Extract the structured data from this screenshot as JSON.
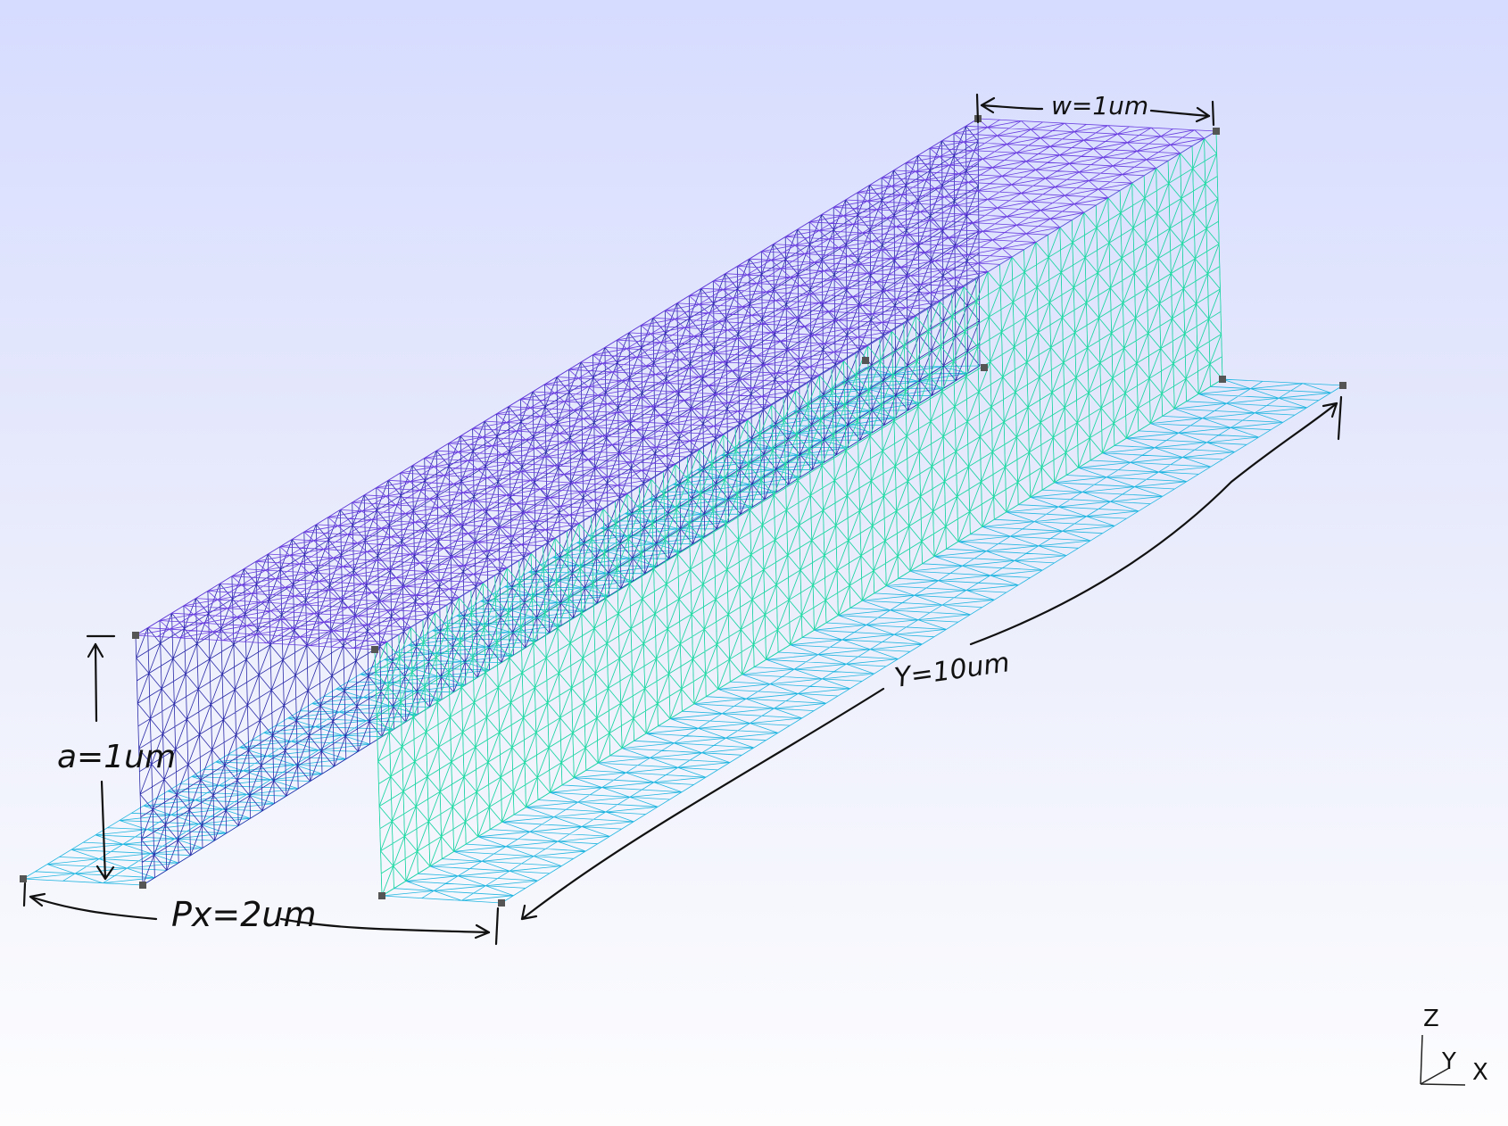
{
  "annotations": {
    "width_label": "w=1um",
    "height_label": "a=1um",
    "pitch_label": "Px=2um",
    "length_label": "Y=10um"
  },
  "axes": {
    "z": "Z",
    "y": "Y",
    "x": "X"
  },
  "colors": {
    "top_face": "#6a3ee0",
    "left_wall": "#2a2aa8",
    "inner_wall": "#2b6cd6",
    "right_wall": "#1fe0a0",
    "floor": "#22b6e0",
    "dimension_ink": "#111111",
    "vertex_marker": "#555555"
  }
}
